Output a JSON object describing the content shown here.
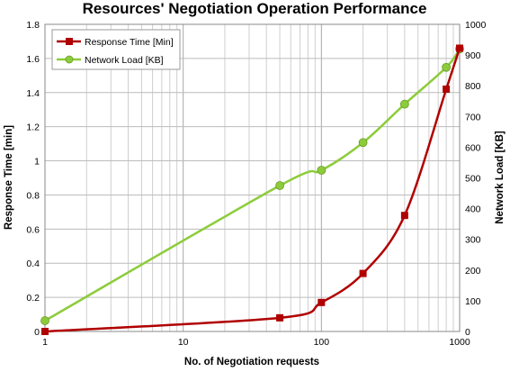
{
  "chart_data": {
    "type": "line",
    "title": "Resources' Negotiation Operation Performance",
    "xlabel": "No. of Negotiation requests",
    "ylabel_left": "Response Time [min]",
    "ylabel_right": "Network Load [KB]",
    "x_scale": "log",
    "xlim": [
      1,
      1000
    ],
    "x_ticks": [
      "1",
      "10",
      "100",
      "1000"
    ],
    "ylim_left": [
      0,
      1.8
    ],
    "y_ticks_left": [
      "0",
      "0.2",
      "0.4",
      "0.6",
      "0.8",
      "1",
      "1.2",
      "1.4",
      "1.6",
      "1.8"
    ],
    "ylim_right": [
      0,
      1000
    ],
    "y_ticks_right": [
      "0",
      "100",
      "200",
      "300",
      "400",
      "500",
      "600",
      "700",
      "800",
      "900",
      "1000"
    ],
    "grid": true,
    "legend_position": "top-left",
    "series": [
      {
        "name": "Response Time [Min]",
        "axis": "left",
        "color": "#b00000",
        "marker": "square",
        "x": [
          1,
          50,
          100,
          200,
          400,
          800,
          1000
        ],
        "y": [
          0.0,
          0.08,
          0.17,
          0.34,
          0.68,
          1.42,
          1.66
        ]
      },
      {
        "name": "Network Load [KB]",
        "axis": "right",
        "color": "#8ccc3a",
        "marker_fill": "#8ccc3a",
        "marker": "circle",
        "x": [
          1,
          50,
          100,
          200,
          400,
          800,
          1000
        ],
        "y": [
          35,
          475,
          525,
          615,
          740,
          860,
          920
        ]
      }
    ]
  }
}
